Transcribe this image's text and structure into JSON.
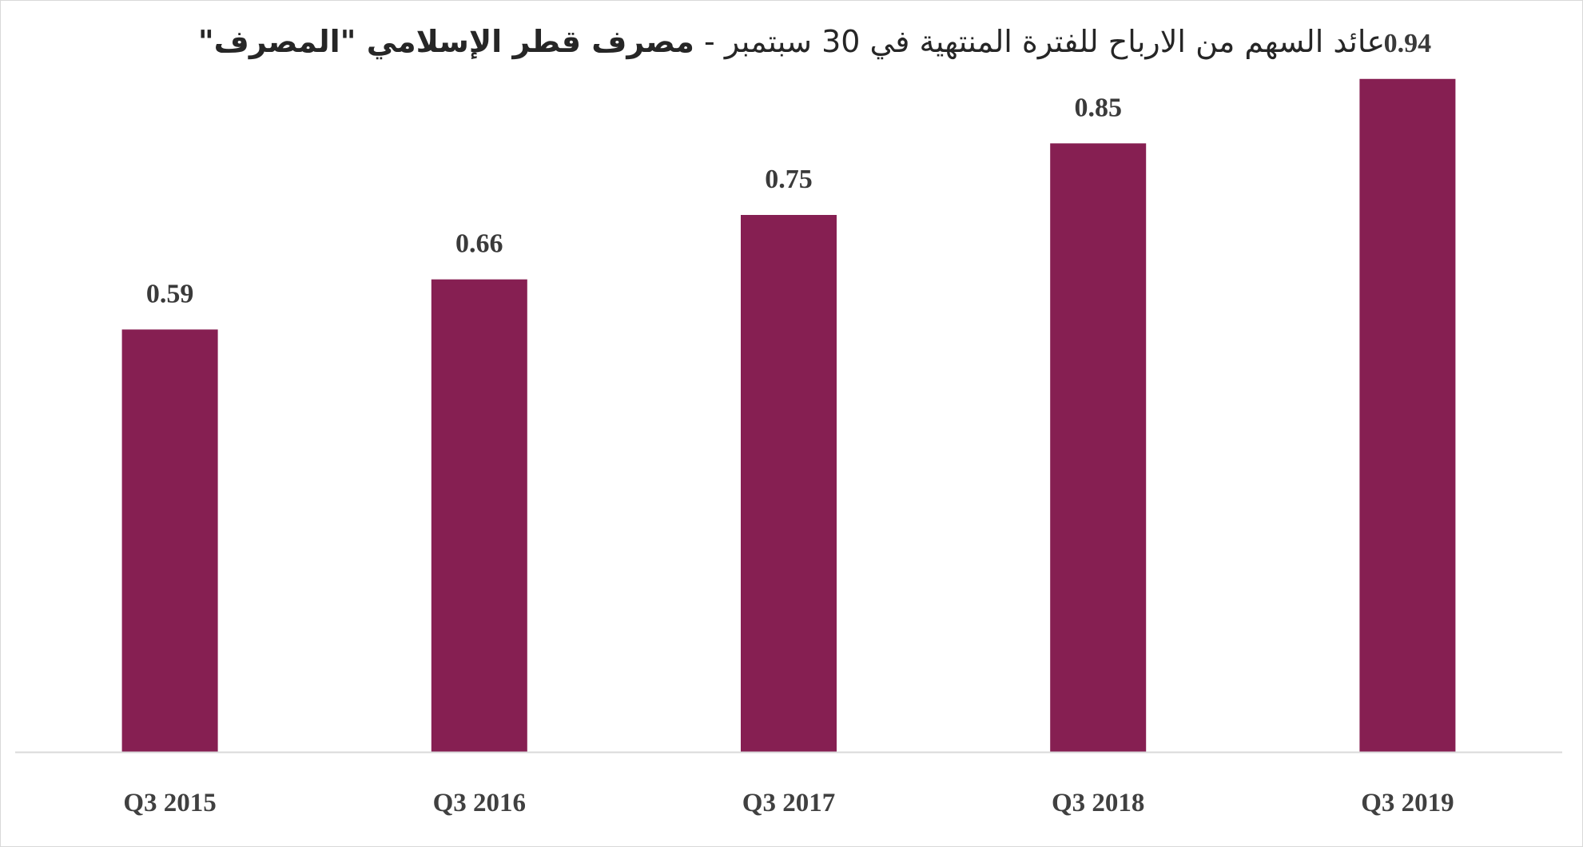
{
  "chart_data": {
    "type": "bar",
    "title": "عائد السهم من الارباح للفترة المنتهية في 30 سبتمبر - ",
    "subtitle": "مصرف قطر الإسلامي \"المصرف\"",
    "categories": [
      "Q3 2015",
      "Q3 2016",
      "Q3 2017",
      "Q3 2018",
      "Q3 2019"
    ],
    "values": [
      0.59,
      0.66,
      0.75,
      0.85,
      0.94
    ],
    "value_labels": [
      "0.59",
      "0.66",
      "0.75",
      "0.85",
      "0.94"
    ],
    "xlabel": "",
    "ylabel": "",
    "ylim": [
      0,
      1.0
    ],
    "grid": false,
    "legend": "none",
    "bar_color": "#861F52",
    "axis_color": "#d9d9d9"
  }
}
